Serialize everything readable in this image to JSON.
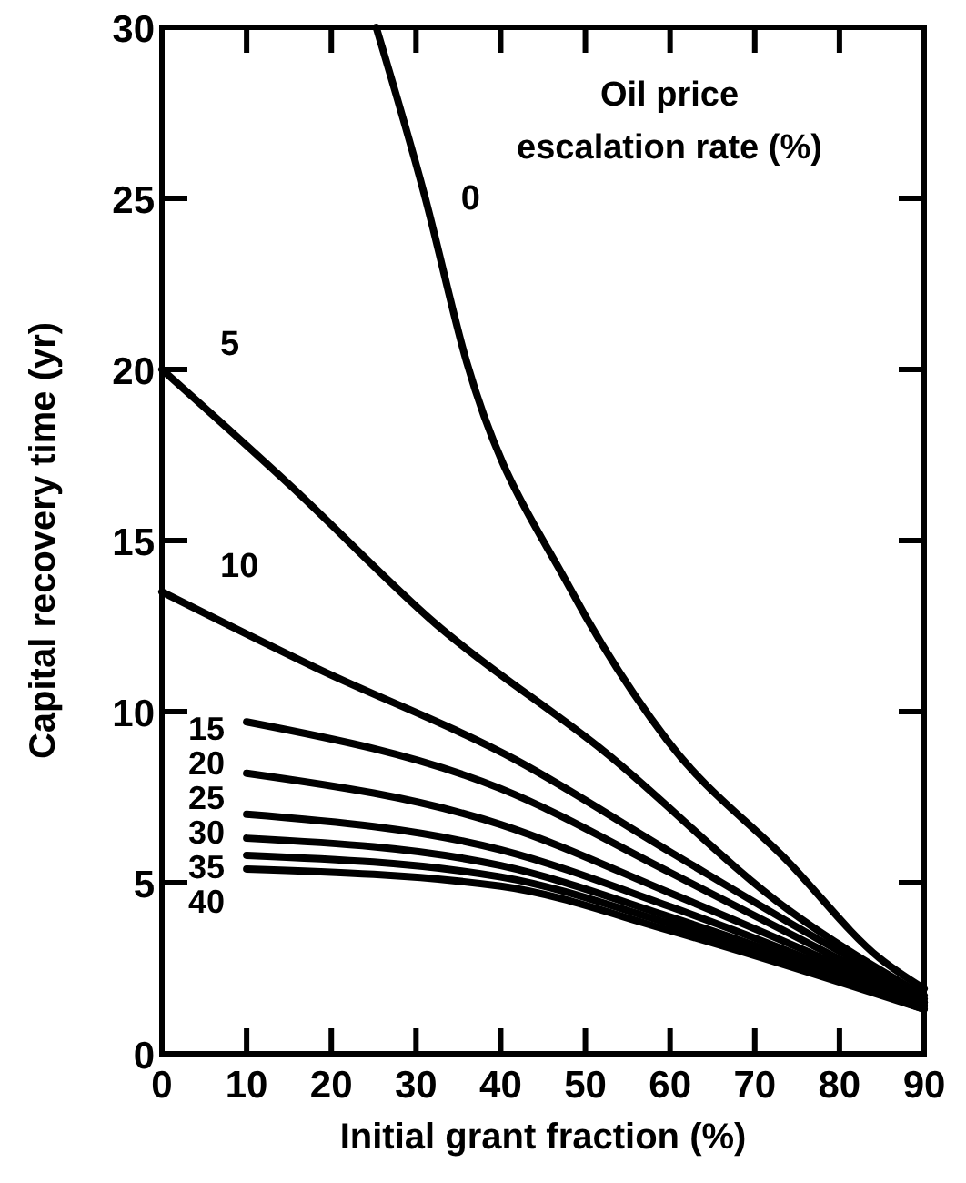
{
  "chart_data": {
    "type": "line",
    "xlabel": "Initial grant fraction (%)",
    "ylabel": "Capital recovery time (yr)",
    "legend_title": "Oil price escalation rate (%)",
    "xlim": [
      0,
      90
    ],
    "ylim": [
      0,
      30
    ],
    "xticks": [
      0,
      10,
      20,
      30,
      40,
      50,
      60,
      70,
      80,
      90
    ],
    "yticks": [
      0,
      5,
      10,
      15,
      20,
      25,
      30
    ],
    "grid": false,
    "marker": "none",
    "line_style": "solid",
    "series": [
      {
        "name": "0",
        "color": "#000000",
        "x": [
          25.3,
          31,
          36,
          48.2,
          59.7,
          74,
          84.7,
          90
        ],
        "values": [
          30,
          25.1,
          20.2,
          13.6,
          9.15,
          5.6,
          2.8,
          1.9
        ]
      },
      {
        "name": "5",
        "color": "#000000",
        "x": [
          0,
          15.2,
          32.4,
          52.4,
          74,
          90
        ],
        "values": [
          20,
          16.6,
          12.55,
          8.8,
          4.2,
          1.7
        ]
      },
      {
        "name": "10",
        "color": "#000000",
        "x": [
          0,
          18,
          41.7,
          60,
          75,
          90
        ],
        "values": [
          13.5,
          11.3,
          8.6,
          5.9,
          3.7,
          1.6
        ]
      },
      {
        "name": "15",
        "color": "#000000",
        "x": [
          10,
          40,
          60,
          90
        ],
        "values": [
          9.7,
          7.75,
          5.3,
          1.5
        ]
      },
      {
        "name": "20",
        "color": "#000000",
        "x": [
          10,
          40,
          60,
          90
        ],
        "values": [
          8.2,
          6.7,
          4.7,
          1.5
        ]
      },
      {
        "name": "25",
        "color": "#000000",
        "x": [
          10,
          40,
          60,
          90
        ],
        "values": [
          7.0,
          5.96,
          4.3,
          1.4
        ]
      },
      {
        "name": "30",
        "color": "#000000",
        "x": [
          10,
          40,
          60,
          90
        ],
        "values": [
          6.3,
          5.5,
          4.0,
          1.4
        ]
      },
      {
        "name": "35",
        "color": "#000000",
        "x": [
          10,
          40,
          60,
          90
        ],
        "values": [
          5.8,
          5.17,
          3.8,
          1.3
        ]
      },
      {
        "name": "40",
        "color": "#000000",
        "x": [
          10,
          40,
          60,
          90
        ],
        "values": [
          5.4,
          4.9,
          3.6,
          1.3
        ]
      }
    ]
  }
}
